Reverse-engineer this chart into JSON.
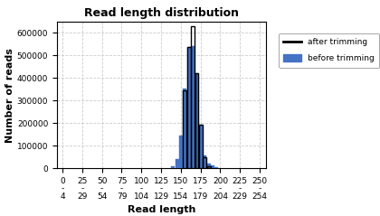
{
  "title": "Read length distribution",
  "xlabel": "Read length",
  "ylabel": "Number of reads",
  "xlim": [
    -5,
    260
  ],
  "ylim": [
    0,
    650000
  ],
  "yticks": [
    0,
    100000,
    200000,
    300000,
    400000,
    500000,
    600000
  ],
  "ytick_labels": [
    "0",
    "100000",
    "200000",
    "300000",
    "400000",
    "500000",
    "600000"
  ],
  "xtick_positions": [
    2,
    27,
    52,
    77,
    102,
    127,
    152,
    177,
    202,
    227,
    252
  ],
  "xtick_labels": [
    "0\n-\n4",
    "25\n-\n29",
    "50\n-\n54",
    "75\n-\n79",
    "100\n-\n104",
    "125\n-\n129",
    "150\n-\n154",
    "175\n-\n179",
    "200\n-\n204",
    "225\n-\n229",
    "250\n-\n254"
  ],
  "bar_width": 4.5,
  "before_trimming_positions": [
    140,
    145,
    150,
    155,
    160,
    165,
    170,
    175,
    180,
    185,
    190,
    195
  ],
  "before_trimming_heights": [
    10000,
    40000,
    145000,
    355000,
    537000,
    540000,
    420000,
    195000,
    57000,
    20000,
    12000,
    5000
  ],
  "after_trimming_positions": [
    155,
    160,
    165,
    170,
    175,
    180,
    185
  ],
  "after_trimming_heights": [
    345000,
    537000,
    630000,
    420000,
    195000,
    50000,
    10000
  ],
  "before_color": "#4472c4",
  "after_color": "#000000",
  "grid_color": "#cccccc",
  "bg_color": "#ffffff",
  "legend_after": "after trimming",
  "legend_before": "before trimming",
  "title_fontsize": 9,
  "axis_label_fontsize": 8,
  "tick_fontsize": 6.5
}
